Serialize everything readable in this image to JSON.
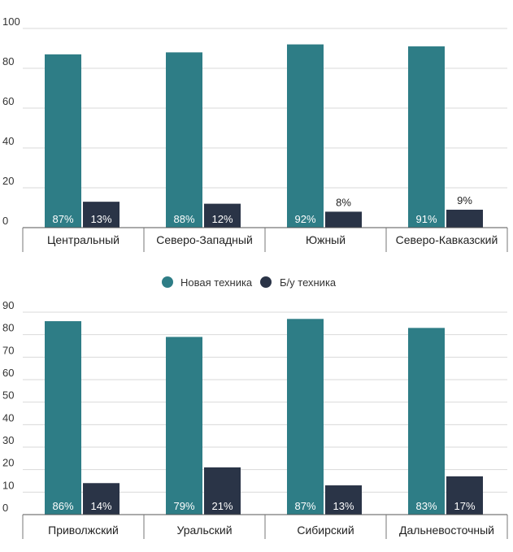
{
  "colors": {
    "new": "#2e7d86",
    "used": "#2a3447",
    "grid": "#d9d9d9",
    "axis": "#555555"
  },
  "legend": {
    "items": [
      {
        "label": "Новая техника",
        "color": "#2e7d86"
      },
      {
        "label": "Б/у техника",
        "color": "#2a3447"
      }
    ]
  },
  "chart_data": [
    {
      "type": "bar",
      "categories": [
        "Центральный",
        "Северо-Западный",
        "Южный",
        "Северо-Кавказский"
      ],
      "series": [
        {
          "name": "Новая техника",
          "values": [
            87,
            88,
            92,
            91
          ],
          "labels": [
            "87%",
            "88%",
            "92%",
            "91%"
          ]
        },
        {
          "name": "Б/у техника",
          "values": [
            13,
            12,
            8,
            9
          ],
          "labels": [
            "13%",
            "12%",
            "8%",
            "9%"
          ]
        }
      ],
      "yticks": [
        "0",
        "20",
        "40",
        "60",
        "80",
        "100"
      ],
      "ylim": [
        0,
        100
      ],
      "grid": true,
      "legend": "bottom"
    },
    {
      "type": "bar",
      "categories": [
        "Приволжский",
        "Уральский",
        "Сибирский",
        "Дальневосточный"
      ],
      "series": [
        {
          "name": "Новая техника",
          "values": [
            86,
            79,
            87,
            83
          ],
          "labels": [
            "86%",
            "79%",
            "87%",
            "83%"
          ]
        },
        {
          "name": "Б/у техника",
          "values": [
            14,
            21,
            13,
            17
          ],
          "labels": [
            "14%",
            "21%",
            "13%",
            "17%"
          ]
        }
      ],
      "yticks": [
        "0",
        "10",
        "20",
        "30",
        "40",
        "50",
        "60",
        "70",
        "80",
        "90"
      ],
      "ylim": [
        0,
        90
      ],
      "grid": true
    }
  ]
}
